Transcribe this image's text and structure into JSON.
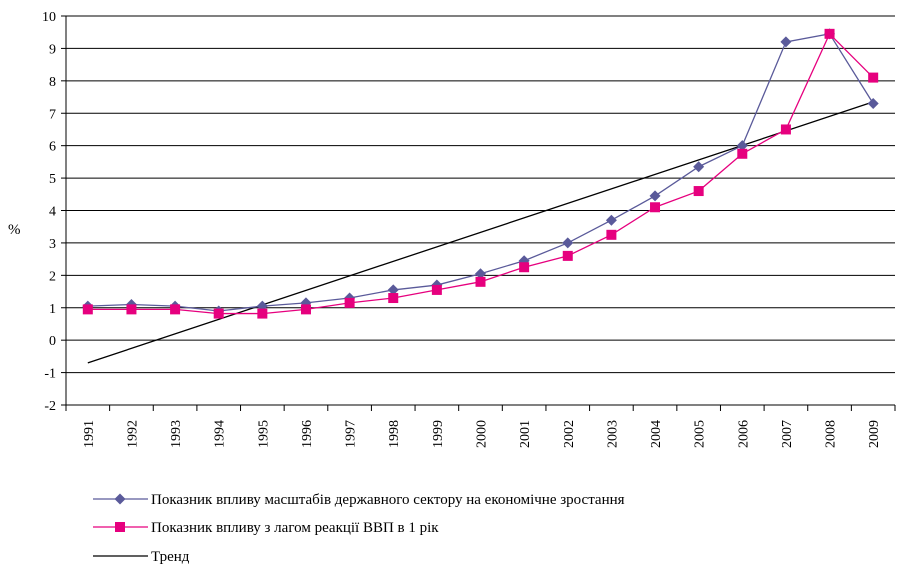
{
  "chart_data": {
    "type": "line",
    "ylabel": "%",
    "ylim": [
      -2,
      10
    ],
    "yticks": [
      -2,
      -1,
      0,
      1,
      2,
      3,
      4,
      5,
      6,
      7,
      8,
      9,
      10
    ],
    "grid": true,
    "legend_position": "bottom",
    "categories": [
      "1991",
      "1992",
      "1993",
      "1994",
      "1995",
      "1996",
      "1997",
      "1998",
      "1999",
      "2000",
      "2001",
      "2002",
      "2003",
      "2004",
      "2005",
      "2006",
      "2007",
      "2008",
      "2009"
    ],
    "series": [
      {
        "name": "Показник впливу масштабів державного сектору на економічне зростання",
        "color": "#5a5a9a",
        "marker": "diamond",
        "values": [
          1.05,
          1.1,
          1.05,
          0.9,
          1.05,
          1.15,
          1.3,
          1.55,
          1.7,
          2.05,
          2.45,
          3.0,
          3.7,
          4.45,
          5.35,
          6.0,
          9.2,
          9.45,
          7.3
        ]
      },
      {
        "name": "Показник впливу з лагом реакції ВВП в 1 рік",
        "color": "#e6007e",
        "marker": "square",
        "values": [
          0.95,
          0.95,
          0.95,
          0.82,
          0.82,
          0.95,
          1.15,
          1.3,
          1.55,
          1.8,
          2.25,
          2.6,
          3.25,
          4.1,
          4.6,
          5.75,
          6.5,
          9.45,
          8.1
        ]
      },
      {
        "name": "Тренд",
        "color": "#000000",
        "marker": "none",
        "values": [
          -0.7,
          -0.2,
          0.25,
          0.7,
          1.15,
          1.58,
          2.02,
          2.45,
          2.88,
          3.32,
          3.76,
          4.2,
          4.64,
          5.08,
          5.52,
          5.95,
          6.4,
          6.85,
          7.35
        ]
      }
    ]
  }
}
